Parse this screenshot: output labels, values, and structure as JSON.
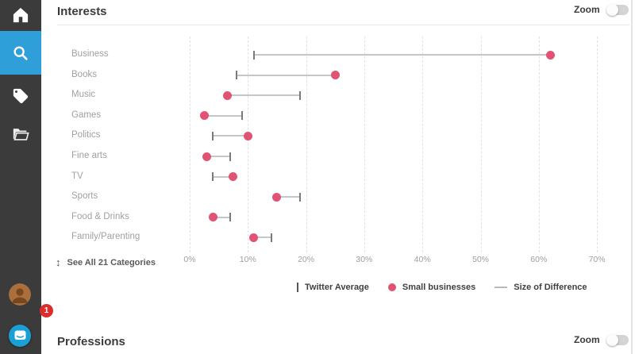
{
  "sidebar": {
    "items": [
      {
        "id": "home",
        "icon": "home-icon",
        "active": false
      },
      {
        "id": "search",
        "icon": "search-icon",
        "active": true
      },
      {
        "id": "tags",
        "icon": "tag-icon",
        "active": false
      },
      {
        "id": "folders",
        "icon": "folder-icon",
        "active": false
      }
    ],
    "active_color": "#2e9fd8",
    "notification_badge": "1"
  },
  "sections": {
    "interests": {
      "title": "Interests",
      "zoom_label": "Zoom",
      "see_all_label": "See All 21 Categories"
    },
    "professions": {
      "title": "Professions",
      "zoom_label": "Zoom"
    }
  },
  "chart_data": {
    "type": "scatter",
    "variant": "dumbbell-dot-plot",
    "title": "Interests",
    "categories": [
      "Business",
      "Books",
      "Music",
      "Games",
      "Politics",
      "Fine arts",
      "TV",
      "Sports",
      "Food & Drinks",
      "Family/Parenting"
    ],
    "series": [
      {
        "name": "Twitter Average",
        "marker": "tick",
        "color": "#7a7a7a",
        "values": [
          11,
          8,
          19,
          9,
          4,
          7,
          4,
          19,
          7,
          14
        ]
      },
      {
        "name": "Small businesses",
        "marker": "dot",
        "color": "#e05374",
        "values": [
          62,
          25,
          6.5,
          2.5,
          10,
          3,
          7.5,
          15,
          4,
          11
        ]
      }
    ],
    "connector_name": "Size of Difference",
    "connector_color": "#c6c6c6",
    "x_ticks": [
      "0%",
      "10%",
      "20%",
      "30%",
      "40%",
      "50%",
      "60%",
      "70%"
    ],
    "x_tick_values": [
      0,
      10,
      20,
      30,
      40,
      50,
      60,
      70
    ],
    "xlim": [
      0,
      75
    ],
    "grid": "vertical-dashed",
    "legend": [
      "Twitter Average",
      "Small businesses",
      "Size of Difference"
    ],
    "legend_position": "bottom-center"
  }
}
